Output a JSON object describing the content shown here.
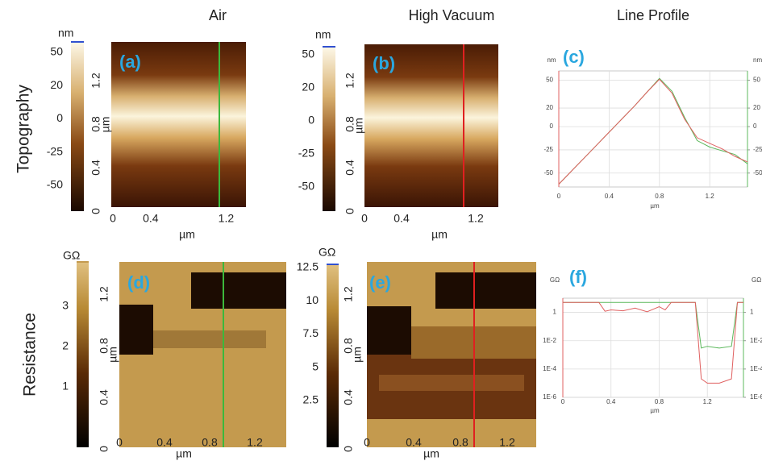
{
  "column_titles": [
    "Air",
    "High Vacuum",
    "Line Profile"
  ],
  "row_titles": [
    "Topography",
    "Resistance"
  ],
  "maps": [
    {
      "label": "(a)",
      "colorbar_unit": "nm",
      "colorbar_ticks": [
        50,
        20,
        0,
        -25,
        -50
      ],
      "y_ticks": [
        0,
        0.4,
        0.8,
        1.2
      ],
      "y_label": "µm",
      "x_ticks": [
        0,
        0.4,
        1.2
      ],
      "x_label": "µm"
    },
    {
      "label": "(b)",
      "colorbar_unit": "nm",
      "colorbar_ticks": [
        50,
        20,
        0,
        -25,
        -50
      ],
      "y_ticks": [
        0,
        0.4,
        0.8,
        1.2
      ],
      "y_label": "µm",
      "x_ticks": [
        0,
        0.4,
        1.2
      ],
      "x_label": "µm"
    },
    {
      "label": "(d)",
      "colorbar_unit": "GΩ",
      "colorbar_ticks": [
        3,
        2,
        1
      ],
      "y_ticks": [
        0,
        0.4,
        0.8,
        1.2
      ],
      "y_label": "µm",
      "x_ticks": [
        0,
        0.4,
        0.8,
        1.2
      ],
      "x_label": "µm"
    },
    {
      "label": "(e)",
      "colorbar_unit": "GΩ",
      "colorbar_ticks": [
        12.5,
        10,
        7.5,
        5,
        2.5
      ],
      "y_ticks": [
        0,
        0.4,
        0.8,
        1.2
      ],
      "y_label": "µm",
      "x_ticks": [
        0,
        0.4,
        0.8,
        1.2
      ],
      "x_label": "µm"
    }
  ],
  "chart_data": [
    {
      "type": "line",
      "label": "(c)",
      "y_unit": "nm",
      "y2_unit": "nm",
      "x_label": "µm",
      "x": [
        0,
        0.1,
        0.2,
        0.3,
        0.4,
        0.5,
        0.6,
        0.7,
        0.8,
        0.9,
        1.0,
        1.1,
        1.2,
        1.3,
        1.4,
        1.5
      ],
      "series": [
        {
          "color": "#5cb85c",
          "values": [
            -62,
            -48,
            -34,
            -20,
            -6,
            8,
            22,
            37,
            52,
            38,
            10,
            -15,
            -22,
            -26,
            -30,
            -40
          ]
        },
        {
          "color": "#e06060",
          "values": [
            -62,
            -48,
            -34,
            -20,
            -6,
            8,
            22,
            37,
            51,
            36,
            8,
            -12,
            -18,
            -24,
            -32,
            -38
          ]
        }
      ],
      "xlim": [
        0,
        1.5
      ],
      "xticks": [
        0,
        0.4,
        0.8,
        1.2
      ],
      "ylim": [
        -65,
        60
      ],
      "yticks": [
        50,
        20,
        0,
        -25,
        -50
      ],
      "y2lim": [
        -65,
        60
      ],
      "y2ticks": [
        50,
        20,
        0,
        -25,
        -50
      ],
      "grid": true
    },
    {
      "type": "line",
      "label": "(f)",
      "y_unit": "GΩ",
      "y2_unit": "GΩ",
      "x_label": "µm",
      "log_y": true,
      "x": [
        0,
        0.1,
        0.2,
        0.3,
        0.35,
        0.4,
        0.5,
        0.6,
        0.7,
        0.8,
        0.85,
        0.9,
        1.0,
        1.1,
        1.15,
        1.2,
        1.3,
        1.4,
        1.45,
        1.5
      ],
      "series": [
        {
          "color": "#5cb85c",
          "values": [
            5,
            5,
            5,
            5,
            5,
            5,
            5,
            5,
            5,
            5,
            5,
            5,
            5,
            5,
            0.003,
            0.004,
            0.003,
            0.004,
            5,
            5
          ]
        },
        {
          "color": "#e06060",
          "values": [
            5,
            5,
            5,
            5,
            1.2,
            1.5,
            1.3,
            2,
            1.1,
            2.5,
            1.5,
            5,
            5,
            5,
            2e-05,
            1e-05,
            1e-05,
            2e-05,
            5,
            5
          ]
        }
      ],
      "xlim": [
        0,
        1.5
      ],
      "xticks": [
        0,
        0.4,
        0.8,
        1.2
      ],
      "ylim": [
        1e-06,
        10
      ],
      "yticks": [
        {
          "value": 1,
          "label": "1"
        },
        {
          "value": 0.01,
          "label": "1E-2"
        },
        {
          "value": 0.0001,
          "label": "1E-4"
        },
        {
          "value": 1e-06,
          "label": "1E-6"
        }
      ],
      "y2lim": [
        1e-06,
        10
      ],
      "y2ticks": [
        {
          "value": 1,
          "label": "1"
        },
        {
          "value": 0.01,
          "label": "1E-2"
        },
        {
          "value": 0.0001,
          "label": "1E-4"
        },
        {
          "value": 1e-06,
          "label": "1E-6"
        }
      ],
      "grid": true
    }
  ]
}
